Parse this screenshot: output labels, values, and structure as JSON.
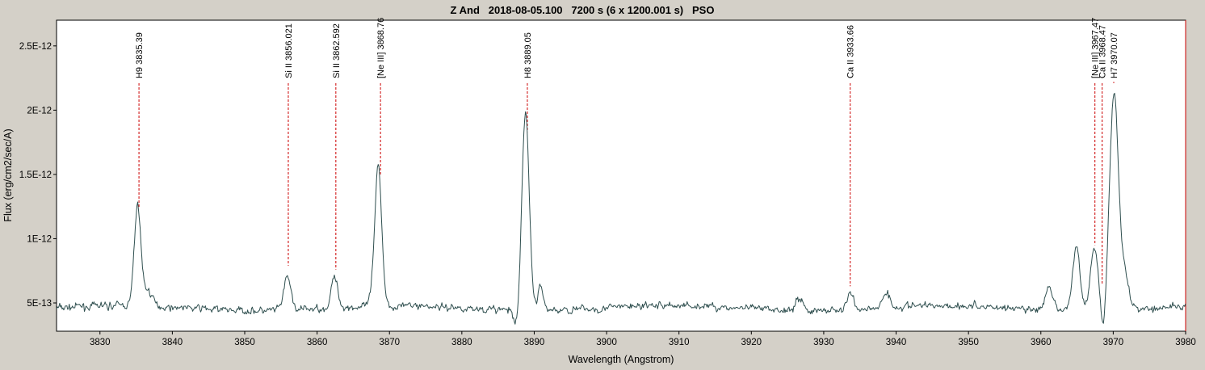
{
  "chart_data": {
    "type": "line",
    "title": "Z And   2018-08-05.100   7200 s (6 x 1200.001 s)   PSO",
    "xlabel": "Wavelength (Angstrom)",
    "ylabel": "Flux (erg/cm2/sec/A)",
    "xlim": [
      3824,
      3980
    ],
    "ylim": [
      2.8e-13,
      2.7e-12
    ],
    "x_ticks": [
      3830,
      3840,
      3850,
      3860,
      3870,
      3880,
      3890,
      3900,
      3910,
      3920,
      3930,
      3940,
      3950,
      3960,
      3970,
      3980
    ],
    "x_tick_labels": [
      "3830",
      "3840",
      "3850",
      "3860",
      "3870",
      "3880",
      "3890",
      "3900",
      "3910",
      "3920",
      "3930",
      "3940",
      "3950",
      "3960",
      "3970",
      "3980"
    ],
    "y_ticks": [
      5e-13,
      1e-12,
      1.5e-12,
      2e-12,
      2.5e-12
    ],
    "y_tick_labels": [
      "5E-13",
      "1E-12",
      "1.5E-12",
      "2E-12",
      "2.5E-12"
    ],
    "grid": false,
    "continuum": 4.6e-13,
    "emission_peaks": [
      {
        "x": 3835.2,
        "amp": 7.8e-13,
        "sigma": 0.45
      },
      {
        "x": 3836.6,
        "amp": 1.2e-13,
        "sigma": 0.6
      },
      {
        "x": 3855.9,
        "amp": 2.5e-13,
        "sigma": 0.5
      },
      {
        "x": 3862.4,
        "amp": 2.3e-13,
        "sigma": 0.45
      },
      {
        "x": 3868.4,
        "amp": 1.15e-12,
        "sigma": 0.5
      },
      {
        "x": 3888.8,
        "amp": 1.56e-12,
        "sigma": 0.5
      },
      {
        "x": 3890.9,
        "amp": 1.8e-13,
        "sigma": 0.4
      },
      {
        "x": 3926.6,
        "amp": 1e-13,
        "sigma": 0.5
      },
      {
        "x": 3933.7,
        "amp": 1.4e-13,
        "sigma": 0.4
      },
      {
        "x": 3938.6,
        "amp": 1.2e-13,
        "sigma": 0.5
      },
      {
        "x": 3961.1,
        "amp": 1.6e-13,
        "sigma": 0.5
      },
      {
        "x": 3964.9,
        "amp": 5e-13,
        "sigma": 0.5
      },
      {
        "x": 3967.4,
        "amp": 4.8e-13,
        "sigma": 0.55
      },
      {
        "x": 3970.1,
        "amp": 1.68e-12,
        "sigma": 0.6
      },
      {
        "x": 3971.5,
        "amp": 2.8e-13,
        "sigma": 0.6
      }
    ],
    "absorption_dips": [
      {
        "x": 3868.0,
        "amp": 1.5e-13,
        "sigma": 0.3
      },
      {
        "x": 3887.6,
        "amp": 1.5e-13,
        "sigma": 0.4
      },
      {
        "x": 3968.6,
        "amp": 2e-13,
        "sigma": 0.35
      }
    ],
    "noise_amplitude": 5.5e-14,
    "series": [
      {
        "color": "#2f4f4f"
      }
    ],
    "line_marker_color": "#cc0000",
    "line_identifications": [
      {
        "label": "H9 3835.39",
        "x": 3835.39,
        "y_end": 1.24e-12
      },
      {
        "label": "Si II 3856.021",
        "x": 3856.021,
        "y_end": 7.9e-13
      },
      {
        "label": "Si II 3862.592",
        "x": 3862.592,
        "y_end": 7.6e-13
      },
      {
        "label": "[Ne III] 3868.76",
        "x": 3868.76,
        "y_end": 1.5e-12
      },
      {
        "label": "H8 3889.05",
        "x": 3889.05,
        "y_end": 1.83e-12
      },
      {
        "label": "Ca II 3933.66",
        "x": 3933.66,
        "y_end": 6.3e-13
      },
      {
        "label": "[Ne III] 3967.47",
        "x": 3967.47,
        "y_end": 9.5e-13
      },
      {
        "label": "Ca II 3968.47",
        "x": 3968.47,
        "y_end": 6.5e-13
      },
      {
        "label": "H7 3970.07",
        "x": 3970.07,
        "y_end": 2.22e-12
      }
    ]
  }
}
